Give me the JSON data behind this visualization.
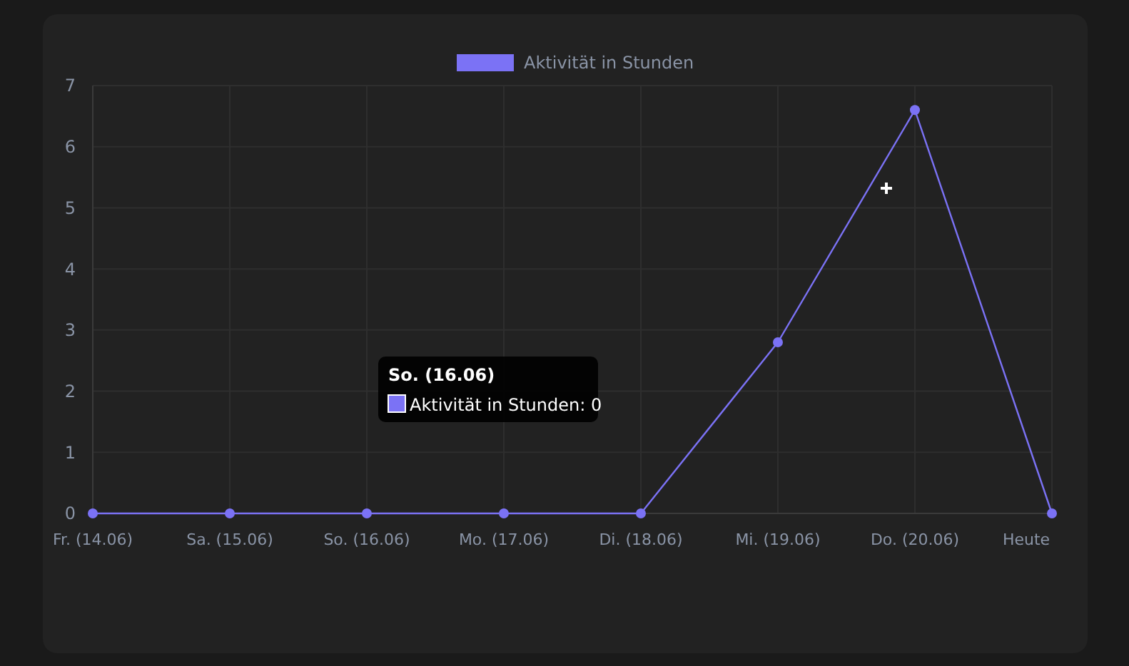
{
  "chart_data": {
    "type": "line",
    "categories": [
      "Fr. (14.06)",
      "Sa. (15.06)",
      "So. (16.06)",
      "Mo. (17.06)",
      "Di. (18.06)",
      "Mi. (19.06)",
      "Do. (20.06)",
      "Heute"
    ],
    "series": [
      {
        "name": "Aktivität in Stunden",
        "color": "#7b72f5",
        "values": [
          0,
          0,
          0,
          0,
          0,
          2.8,
          6.6,
          0
        ]
      }
    ],
    "ylim": [
      0,
      7
    ],
    "yticks": [
      0,
      1,
      2,
      3,
      4,
      5,
      6,
      7
    ],
    "grid": true,
    "legend": "top",
    "marker": "circle",
    "line_style": "solid",
    "annotations": [
      "So. (16.06)",
      "Aktivität in Stunden: 0"
    ]
  }
}
